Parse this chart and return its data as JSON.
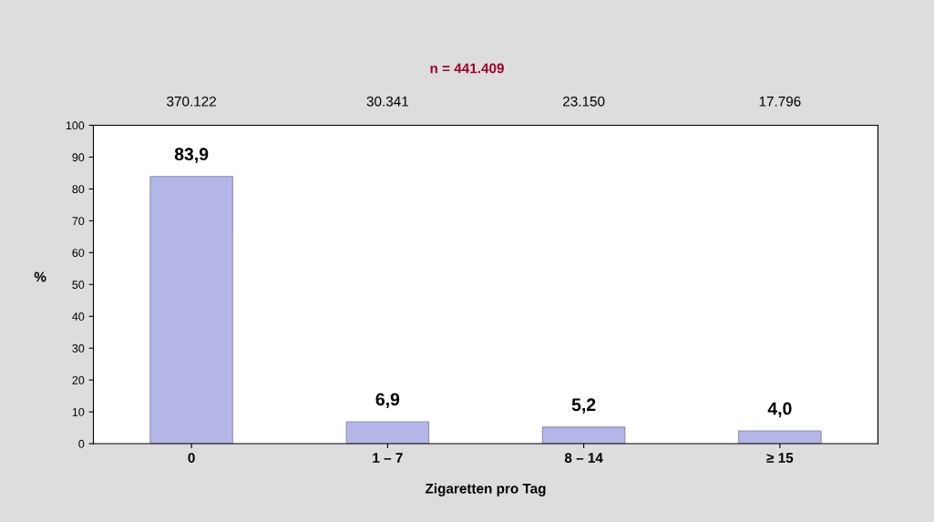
{
  "chart_data": {
    "type": "bar",
    "title": "n = 441.409",
    "categories": [
      "0",
      "1 – 7",
      "8 – 14",
      "≥ 15"
    ],
    "values": [
      83.9,
      6.9,
      5.2,
      4.0
    ],
    "value_labels": [
      "83,9",
      "6,9",
      "5,2",
      "4,0"
    ],
    "color": "#b4b6e8",
    "xlabel": "Zigaretten pro Tag",
    "ylabel": "%",
    "ylim": [
      0,
      100
    ],
    "yticks": [
      0,
      10,
      20,
      30,
      40,
      50,
      60,
      70,
      80,
      90,
      100
    ],
    "annotations": [
      "370.122",
      "30.341",
      "23.150",
      "17.796"
    ],
    "grid": false
  }
}
